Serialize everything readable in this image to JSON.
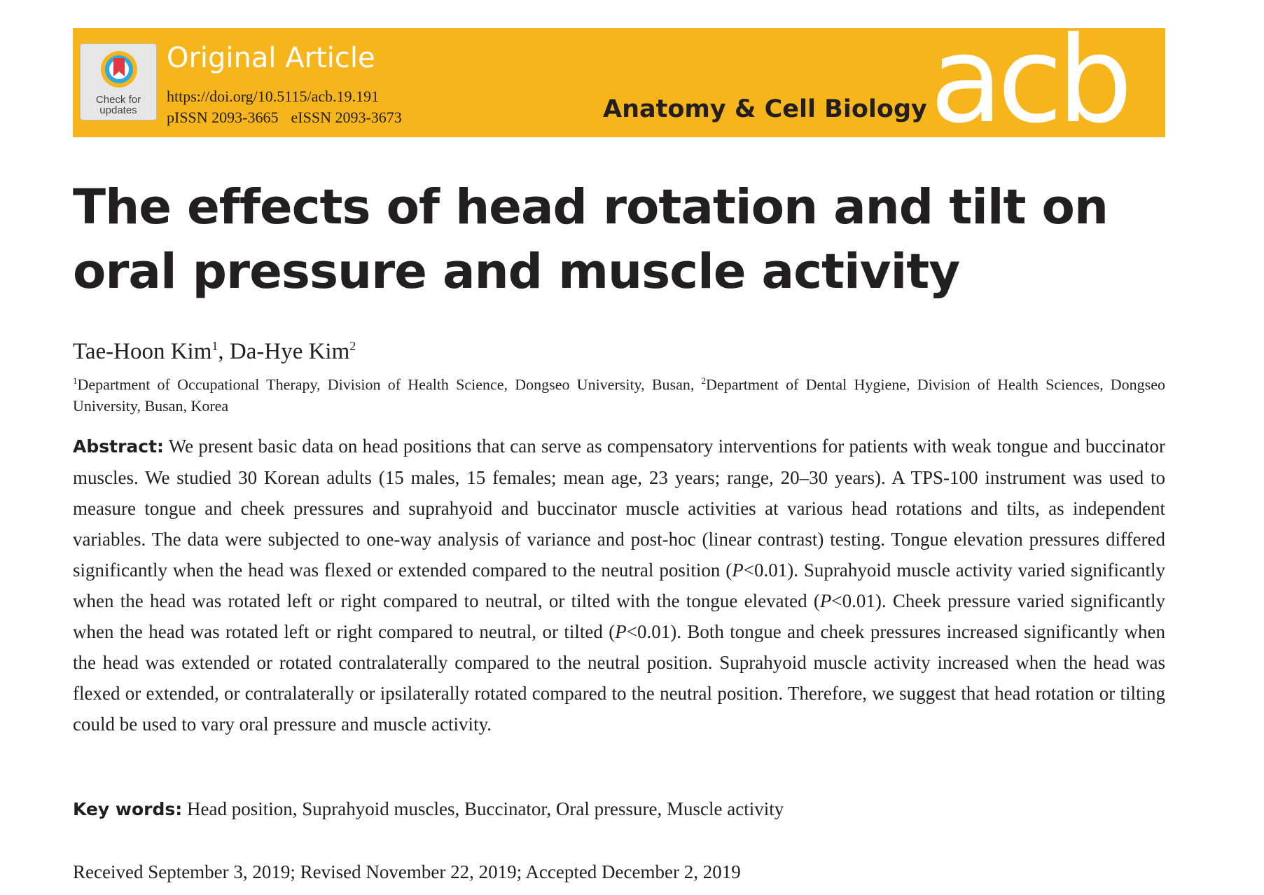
{
  "header": {
    "badge_line1": "Check for",
    "badge_line2": "updates",
    "article_type": "Original Article",
    "doi": "https://doi.org/10.5115/acb.19.191",
    "pissn": "pISSN 2093-3665",
    "eissn": "eISSN 2093-3673",
    "journal_name": "Anatomy & Cell Biology",
    "journal_logo": "acb",
    "colors": {
      "banner": "#f7b51c",
      "logo": "#ffffff"
    }
  },
  "title": "The effects of head rotation and tilt on oral pressure and muscle activity",
  "authors": [
    {
      "name": "Tae-Hoon Kim",
      "sup": "1"
    },
    {
      "name": "Da-Hye Kim",
      "sup": "2"
    }
  ],
  "author_separator": ", ",
  "affiliations": {
    "sup1": "1",
    "text1": "Department of Occupational Therapy, Division of Health Science, Dongseo University, Busan, ",
    "sup2": "2",
    "text2": "Department of Dental Hygiene, Division of Health Sciences, Dongseo University, Busan, Korea"
  },
  "abstract": {
    "label": "Abstract:",
    "p1": " We present basic data on head positions that can serve as compensatory interventions for patients with weak tongue and buccinator muscles. We studied 30 Korean adults (15 males, 15 females; mean age, 23 years; range, 20–30 years). A TPS-100 instrument was used to measure tongue and cheek pressures and suprahyoid and buccinator muscle activities at various head rotations and tilts, as independent variables. The data were subjected to one-way analysis of variance and post-hoc (linear contrast) testing. Tongue elevation pressures differed significantly when the head was flexed or extended compared to the neutral position (",
    "p_sym": "P",
    "p_val": "<0.01",
    "p2": "). Suprahyoid muscle activity varied significantly when the head was rotated left or right compared to neutral, or tilted with the tongue elevated (",
    "p3": "). Cheek pressure varied significantly when the head was rotated left or right compared to neutral, or tilted (",
    "p4": "). Both tongue and cheek pressures increased significantly when the head was extended or rotated contralaterally compared to the neutral position. Suprahyoid muscle activity increased when the head was flexed or extended, or contralaterally or ipsilaterally rotated compared to the neutral position. Therefore, we suggest that head rotation or tilting could be used to vary oral pressure and muscle activity."
  },
  "keywords": {
    "label": "Key words:",
    "text": " Head position, Suprahyoid muscles, Buccinator, Oral pressure, Muscle activity"
  },
  "dates": "Received September 3, 2019; Revised November 22, 2019; Accepted December 2, 2019"
}
